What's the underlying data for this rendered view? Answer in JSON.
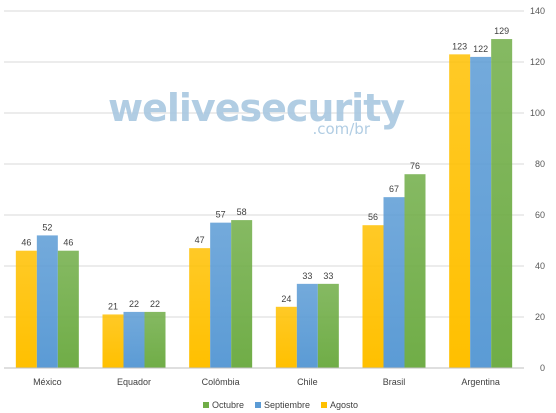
{
  "watermark": {
    "brand": "welivesecurity",
    "domain": ".com/br"
  },
  "chart_data": {
    "type": "bar",
    "categories": [
      "México",
      "Equador",
      "Colômbia",
      "Chile",
      "Brasil",
      "Argentina"
    ],
    "series": [
      {
        "name": "Agosto",
        "values": [
          46,
          21,
          47,
          24,
          56,
          123
        ],
        "color": "#ffc000"
      },
      {
        "name": "Septiembre",
        "values": [
          52,
          22,
          57,
          33,
          67,
          122
        ],
        "color": "#5b9bd5"
      },
      {
        "name": "Octubre",
        "values": [
          46,
          22,
          58,
          33,
          76,
          129
        ],
        "color": "#70ad47"
      }
    ],
    "ylim": [
      0,
      140
    ],
    "y_ticks": [
      0,
      20,
      40,
      60,
      80,
      100,
      120,
      140
    ],
    "y_axis_side": "right",
    "grid": true,
    "data_labels": true,
    "legend_position": "bottom",
    "legend_order": [
      "Octubre",
      "Septiembre",
      "Agosto"
    ]
  }
}
